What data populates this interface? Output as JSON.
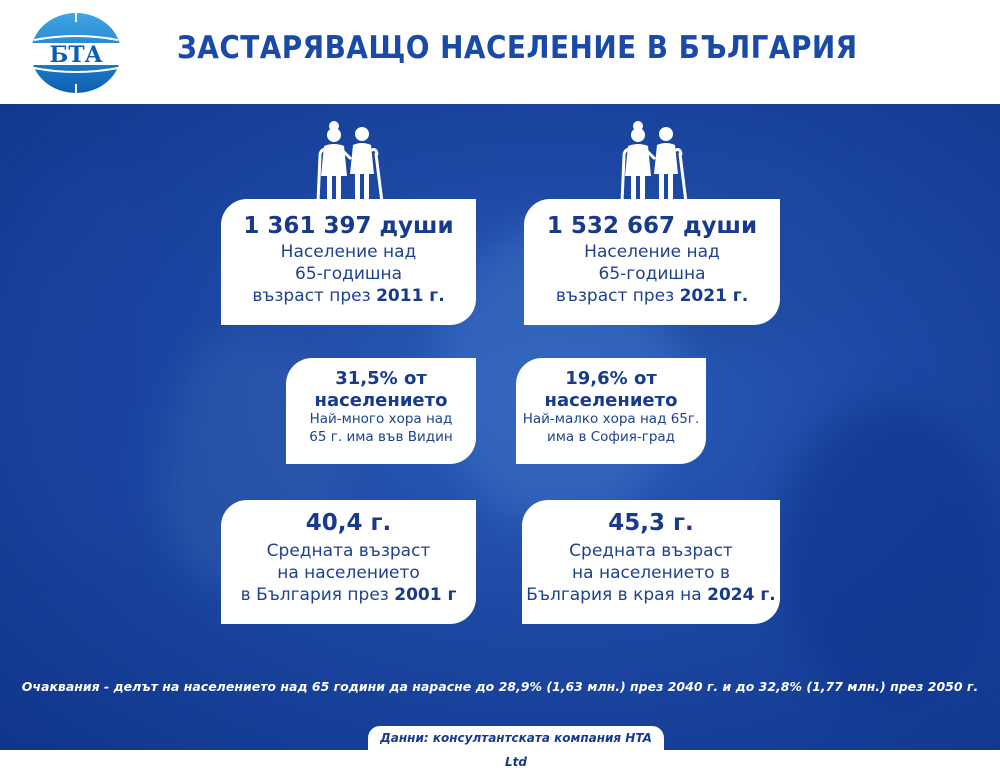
{
  "header": {
    "logo_text": "БТА",
    "title": "ЗАСТАРЯВАЩО НАСЕЛЕНИЕ В БЪЛГАРИЯ"
  },
  "cards": {
    "pop2011": {
      "big": "1 361 397 души",
      "line1": "Население над",
      "line2": "65-годишна",
      "line3_prefix": "възраст през ",
      "line3_bold": "2011 г."
    },
    "pop2021": {
      "big": "1 532 667 души",
      "line1": "Население над",
      "line2": "65-годишна",
      "line3_prefix": "възраст през ",
      "line3_bold": "2021 г."
    },
    "vidin": {
      "big1": "31,5% от",
      "big2": "населението",
      "line1": "Най-много хора над",
      "line2": "65 г. има във Видин"
    },
    "sofia": {
      "big1": "19,6% от",
      "big2": "населението",
      "line1": "Най-малко хора над 65г.",
      "line2": "има в София-град"
    },
    "age2001": {
      "big": "40,4 г.",
      "line1": "Средната възраст",
      "line2": "на населението",
      "line3_prefix": "в България през ",
      "line3_bold": "2001 г"
    },
    "age2024": {
      "big": "45,3 г.",
      "line1": "Средната възраст",
      "line2": "на населението в",
      "line3_prefix": "България в края на ",
      "line3_bold": "2024 г."
    }
  },
  "icons": [
    "elderly-couple-icon",
    "elderly-couple-icon"
  ],
  "footnote": "Очаквания - делът на населението над 65 години да нарасне до 28,9% (1,63 млн.) през 2040 г. и до 32,8% (1,77 млн.) през 2050 г.",
  "source": "Данни: консултантската компания HTA Ltd",
  "colors": {
    "primary_blue": "#1a4aa8",
    "background_blue": "#1c48a3",
    "card_text": "#173a8c"
  }
}
